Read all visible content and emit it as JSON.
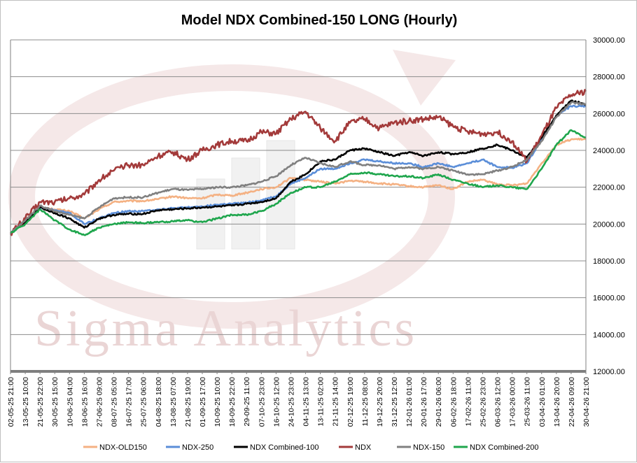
{
  "chart_data": {
    "type": "line",
    "title": "Model NDX Combined-150 LONG (Hourly)",
    "watermark": "Sigma Analytics",
    "ylim": [
      12000,
      30000
    ],
    "yticks": [
      "12000.00",
      "14000.00",
      "16000.00",
      "18000.00",
      "20000.00",
      "22000.00",
      "24000.00",
      "26000.00",
      "28000.00",
      "30000.00"
    ],
    "ytick_values": [
      12000,
      14000,
      16000,
      18000,
      20000,
      22000,
      24000,
      26000,
      28000,
      30000
    ],
    "x": [
      "02-05-25 21:00",
      "13-05-25 10:00",
      "21-05-25 22:00",
      "30-05-25 15:00",
      "10-06-25 04:00",
      "18-06-25 16:00",
      "27-06-25 09:00",
      "08-07-25 05:00",
      "16-07-25 17:00",
      "25-07-25 06:00",
      "04-08-25 18:00",
      "13-08-25 07:00",
      "21-08-25 19:00",
      "01-09-25 17:00",
      "10-09-25 10:00",
      "18-09-25 22:00",
      "29-09-25 11:00",
      "07-10-25 23:00",
      "16-10-25 12:00",
      "24-10-25 23:00",
      "04-11-25 13:00",
      "13-11-25 02:00",
      "21-11-25 14:00",
      "02-12-25 19:00",
      "11-12-25 08:00",
      "19-12-25 20:00",
      "31-12-25 12:00",
      "12-01-26 01:00",
      "20-01-26 17:00",
      "29-01-26 06:00",
      "06-02-26 18:00",
      "17-02-26 11:00",
      "25-02-26 23:00",
      "06-03-26 12:00",
      "17-03-26 00:00",
      "25-03-26 11:00",
      "03-04-26 01:00",
      "13-04-26 20:00",
      "22-04-26 09:00",
      "30-04-26 21:00"
    ],
    "series": [
      {
        "name": "NDX-OLD150",
        "color": "#f4b183",
        "values": [
          19500,
          20200,
          20900,
          20800,
          20700,
          20300,
          20800,
          21200,
          21250,
          21250,
          21350,
          21500,
          21400,
          21400,
          21600,
          21550,
          21700,
          21900,
          22000,
          22500,
          22400,
          22300,
          22200,
          22350,
          22300,
          22200,
          22150,
          22050,
          22000,
          22100,
          21900,
          22300,
          22400,
          22150,
          22100,
          22200,
          23300,
          24300,
          24600,
          24600
        ]
      },
      {
        "name": "NDX-250",
        "color": "#5b8ed8",
        "values": [
          19500,
          20150,
          20900,
          20750,
          20600,
          20000,
          20300,
          20600,
          20700,
          20700,
          20800,
          20850,
          20900,
          20950,
          21050,
          21100,
          21150,
          21300,
          21500,
          22200,
          22500,
          23000,
          23000,
          23300,
          23500,
          23400,
          23300,
          23300,
          23100,
          23300,
          23100,
          23300,
          23500,
          23100,
          23050,
          23300,
          24600,
          25900,
          26400,
          26400
        ]
      },
      {
        "name": "NDX Combined-100",
        "color": "#000000",
        "values": [
          19500,
          20100,
          20900,
          20600,
          20300,
          19800,
          20300,
          20500,
          20550,
          20550,
          20750,
          20800,
          20850,
          20900,
          20950,
          21000,
          21100,
          21200,
          21400,
          22300,
          22700,
          23400,
          23500,
          24000,
          24100,
          23900,
          23700,
          23900,
          23700,
          23900,
          23800,
          23900,
          24100,
          24300,
          24000,
          23600,
          24700,
          25900,
          26700,
          26500
        ]
      },
      {
        "name": "NDX",
        "color": "#a33a3a",
        "values": [
          19500,
          20300,
          21200,
          21200,
          21400,
          21600,
          22400,
          22900,
          23200,
          23200,
          23700,
          23900,
          23500,
          24000,
          24300,
          24500,
          24500,
          25000,
          24900,
          25700,
          26100,
          25200,
          24500,
          25500,
          25700,
          25200,
          25500,
          25600,
          25700,
          25800,
          25300,
          25000,
          24900,
          25000,
          24500,
          23400,
          24800,
          26300,
          27000,
          27200
        ]
      },
      {
        "name": "NDX-150",
        "color": "#808080",
        "values": [
          19500,
          20200,
          21000,
          20700,
          20500,
          20300,
          20900,
          21400,
          21450,
          21450,
          21700,
          21900,
          21850,
          21900,
          22000,
          22000,
          22100,
          22300,
          22600,
          23200,
          23600,
          23300,
          23100,
          23400,
          23200,
          23200,
          23000,
          23100,
          23000,
          23100,
          22900,
          22700,
          22700,
          22900,
          23100,
          23500,
          24500,
          25800,
          26600,
          26500
        ]
      },
      {
        "name": "NDX Combined-200",
        "color": "#1fa64d",
        "values": [
          19500,
          20000,
          20800,
          20200,
          19700,
          19400,
          19800,
          20000,
          20100,
          20050,
          20100,
          20150,
          20200,
          20100,
          20300,
          20500,
          20500,
          20700,
          21100,
          21700,
          22000,
          22000,
          22300,
          22700,
          22800,
          22700,
          22600,
          22600,
          22500,
          22700,
          22400,
          22200,
          22000,
          22100,
          22000,
          21900,
          23000,
          24300,
          25100,
          24700
        ]
      }
    ],
    "legend_position": "bottom",
    "grid": true
  }
}
